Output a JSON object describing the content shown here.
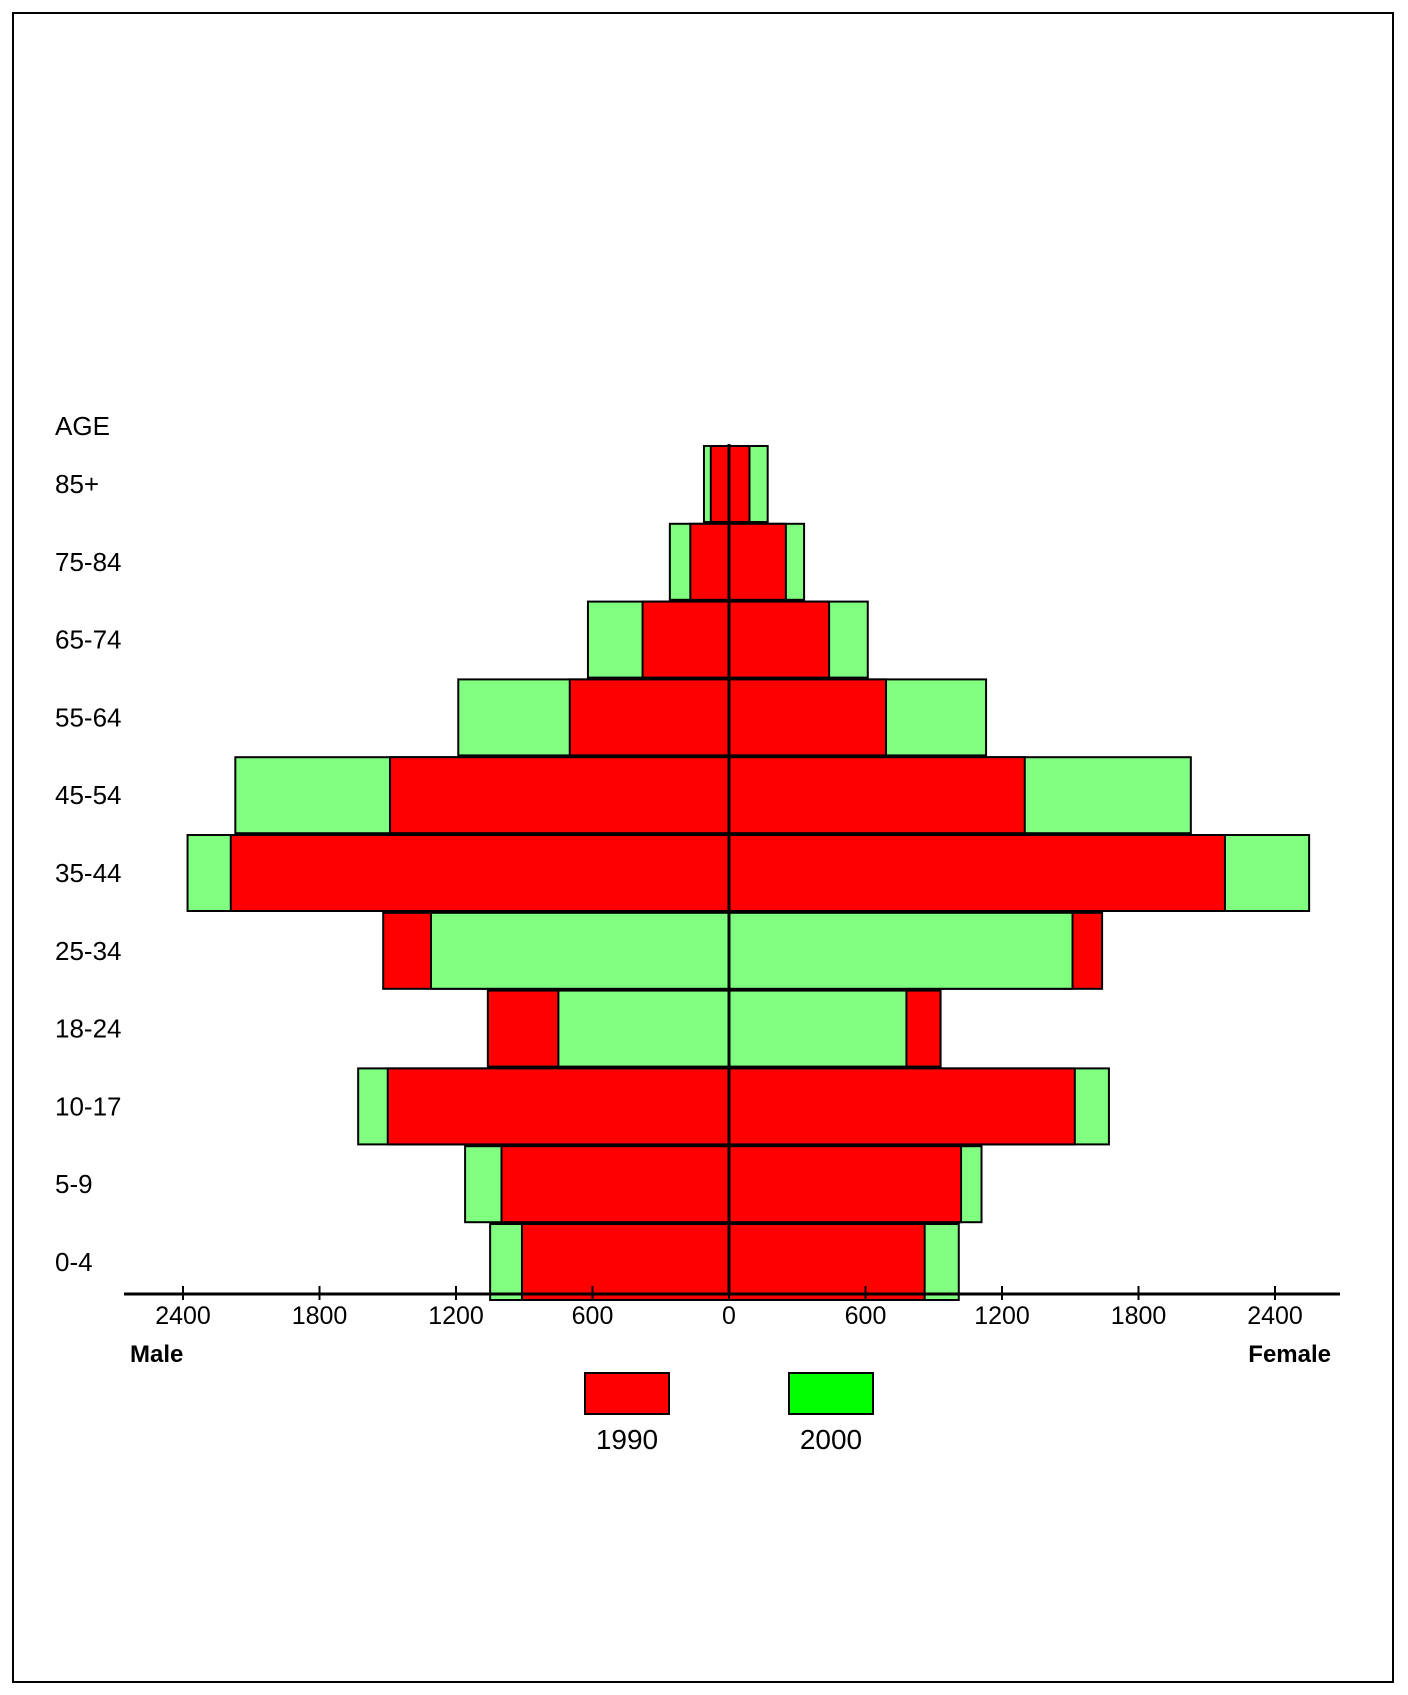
{
  "chart_data": {
    "type": "bar",
    "orientation": "horizontal",
    "subtype": "population-pyramid",
    "title": "",
    "age_axis_label": "AGE",
    "categories": [
      "85+",
      "75-84",
      "65-74",
      "55-64",
      "45-54",
      "35-44",
      "25-34",
      "18-24",
      "10-17",
      "5-9",
      "0-4"
    ],
    "x_ticks": [
      "2400",
      "1800",
      "1200",
      "600",
      "0",
      "600",
      "1200",
      "1800",
      "2400"
    ],
    "xlim": [
      -2700,
      2700
    ],
    "left_label": "Male",
    "right_label": "Female",
    "colors": {
      "1990": "#ff0000",
      "2000": "#80ff80",
      "legend_2000": "#00ff00",
      "outline": "#000000"
    },
    "series": [
      {
        "name": "1990",
        "male": [
          80,
          170,
          380,
          700,
          1490,
          2190,
          1520,
          1060,
          1500,
          1000,
          910
        ],
        "female": [
          90,
          250,
          440,
          690,
          1300,
          2180,
          1640,
          930,
          1520,
          1020,
          860
        ]
      },
      {
        "name": "2000",
        "male": [
          110,
          260,
          620,
          1190,
          2170,
          2380,
          1310,
          750,
          1630,
          1160,
          1050
        ],
        "female": [
          170,
          330,
          610,
          1130,
          2030,
          2550,
          1510,
          780,
          1670,
          1110,
          1010
        ]
      }
    ],
    "legend": [
      {
        "name": "1990",
        "label": "1990"
      },
      {
        "name": "2000",
        "label": "2000"
      }
    ]
  }
}
